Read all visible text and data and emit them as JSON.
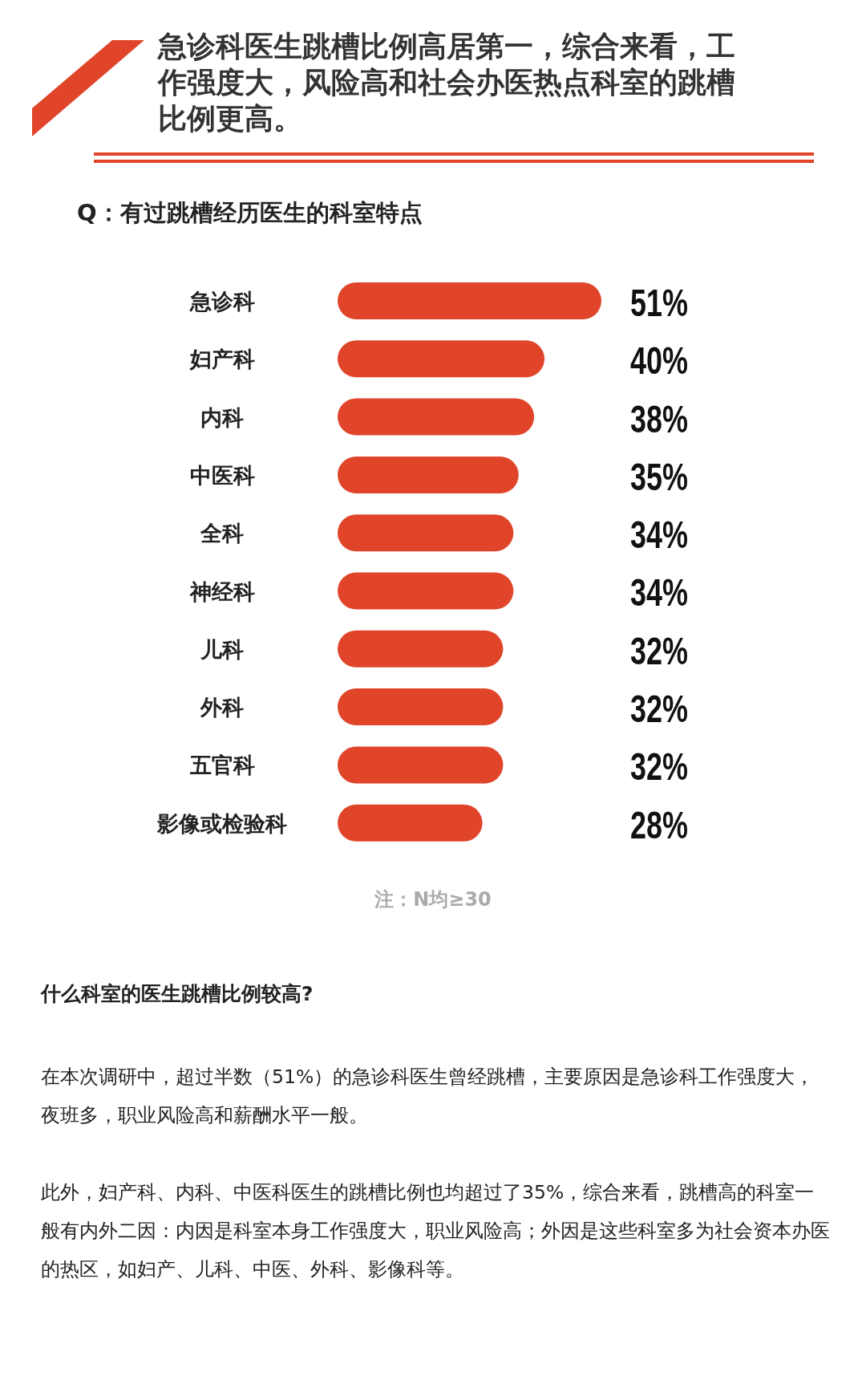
{
  "chart_data": {
    "type": "bar",
    "orientation": "horizontal",
    "title": "急诊科医生跳槽比例高居第一，综合来看，工作强度大，风险高和社会办医热点科室的跳槽比例更高。",
    "subtitle": "Q：有过跳槽经历医生的科室特点",
    "categories": [
      "急诊科",
      "妇产科",
      "内科",
      "中医科",
      "全科",
      "神经科",
      "儿科",
      "外科",
      "五官科",
      "影像或检验科"
    ],
    "values": [
      51,
      40,
      38,
      35,
      34,
      34,
      32,
      32,
      32,
      28
    ],
    "value_labels": [
      "51%",
      "40%",
      "38%",
      "35%",
      "34%",
      "34%",
      "32%",
      "32%",
      "32%",
      "28%"
    ],
    "color": "#e0452a",
    "annotations": [
      "注：N均≥30",
      "什么科室的医生跳槽比例较高?",
      "在本次调研中，超过半数（51%）的急诊科医生曾经跳槽，主要原因是急诊科工作强度大，夜班多，职业风险高和薪酬水平一般。",
      "此外，妇产科、内科、中医科医生的跳槽比例也均超过了35%，综合来看，跳槽高的科室一般有内外二因：内因是科室本身工作强度大，职业风险高；外因是这些科室多为社会资本办医的热区，如妇产、儿科、中医、外科、影像科等。"
    ]
  }
}
